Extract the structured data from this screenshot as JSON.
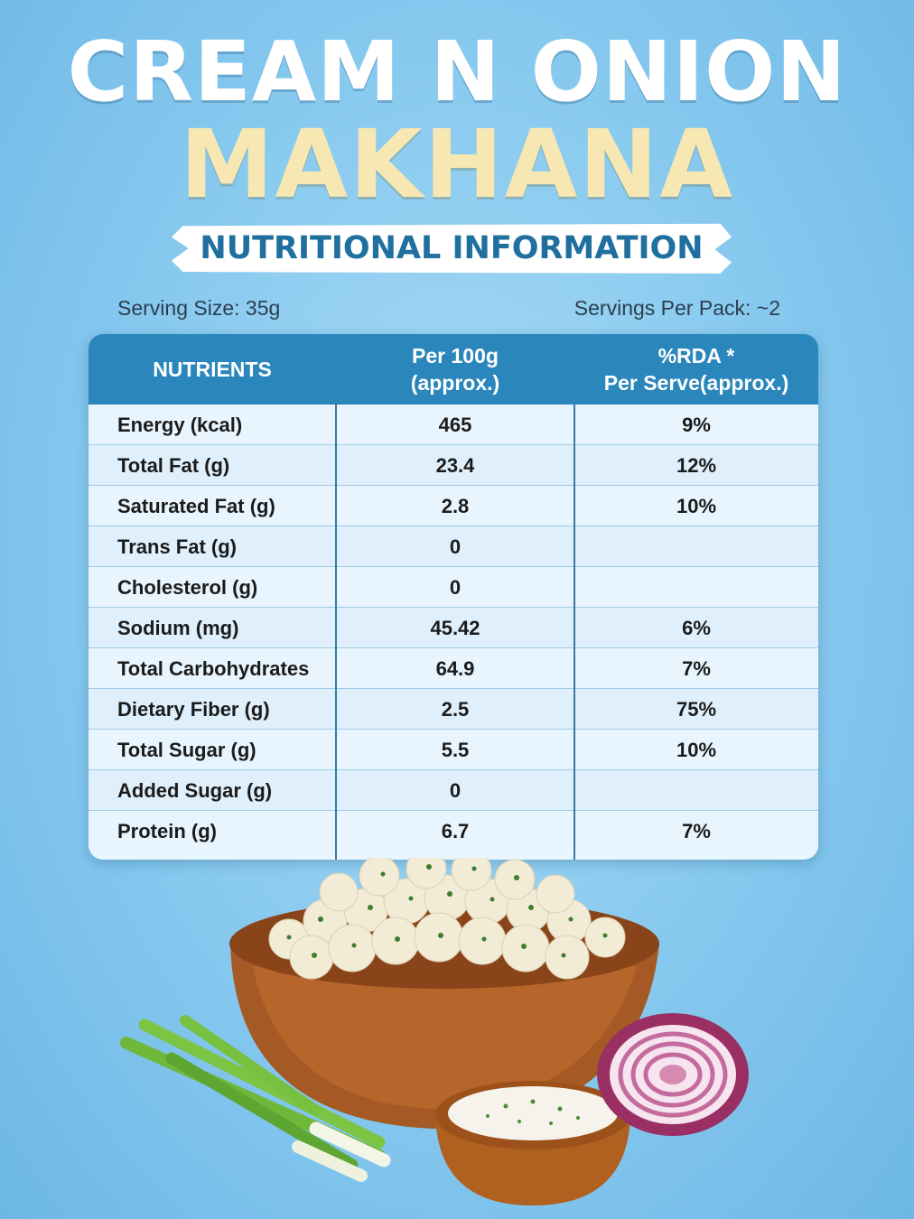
{
  "header": {
    "title_line1": "CREAM N ONION",
    "title_line2": "MAKHANA",
    "banner": "NUTRITIONAL INFORMATION"
  },
  "serving": {
    "size": "Serving Size: 35g",
    "per_pack": "Servings Per Pack: ~2"
  },
  "table": {
    "columns": {
      "nutrients": "NUTRIENTS",
      "per100_line1": "Per 100g",
      "per100_line2": "(approx.)",
      "rda_line1": "%RDA *",
      "rda_line2": "Per Serve(approx.)"
    },
    "rows": [
      {
        "name": "Energy (kcal)",
        "per100": "465",
        "rda": "9%"
      },
      {
        "name": "Total Fat (g)",
        "per100": "23.4",
        "rda": "12%"
      },
      {
        "name": "Saturated Fat (g)",
        "per100": "2.8",
        "rda": "10%"
      },
      {
        "name": "Trans Fat (g)",
        "per100": "0",
        "rda": ""
      },
      {
        "name": "Cholesterol (g)",
        "per100": "0",
        "rda": ""
      },
      {
        "name": "Sodium (mg)",
        "per100": "45.42",
        "rda": "6%"
      },
      {
        "name": "Total Carbohydrates (g)",
        "per100": "64.9",
        "rda": "7%"
      },
      {
        "name": "Dietary Fiber (g)",
        "per100": "2.5",
        "rda": "75%"
      },
      {
        "name": "Total Sugar (g)",
        "per100": "5.5",
        "rda": "10%"
      },
      {
        "name": "Added Sugar (g)",
        "per100": "0",
        "rda": ""
      },
      {
        "name": "Protein (g)",
        "per100": "6.7",
        "rda": "7%"
      }
    ]
  },
  "illustration": {
    "icons": [
      "makhana-bowl-icon",
      "spring-onion-icon",
      "cream-dip-icon",
      "red-onion-icon"
    ]
  }
}
